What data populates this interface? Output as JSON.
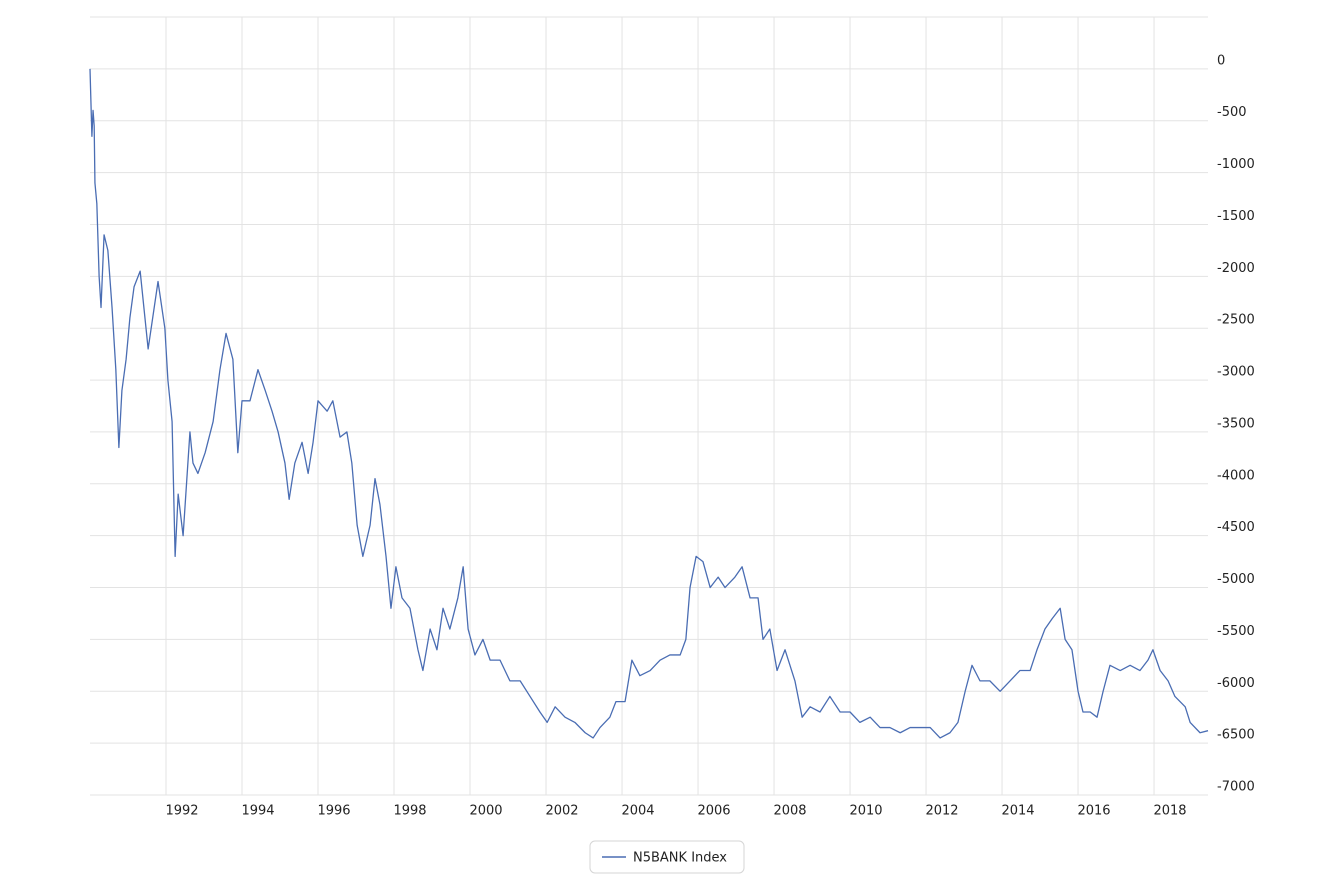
{
  "chart_data": {
    "type": "line",
    "x": [
      1990.0,
      1990.05,
      1990.08,
      1990.11,
      1990.13,
      1990.18,
      1990.24,
      1990.29,
      1990.37,
      1990.47,
      1990.58,
      1990.68,
      1990.76,
      1990.84,
      1990.95,
      1991.05,
      1991.16,
      1991.32,
      1991.53,
      1991.79,
      1991.97,
      1992.05,
      1992.16,
      1992.24,
      1992.32,
      1992.45,
      1992.63,
      1992.71,
      1992.84,
      1993.03,
      1993.24,
      1993.42,
      1993.58,
      1993.76,
      1993.89,
      1994.0,
      1994.21,
      1994.42,
      1994.61,
      1994.79,
      1994.95,
      1995.13,
      1995.24,
      1995.39,
      1995.58,
      1995.74,
      1995.87,
      1996.0,
      1996.24,
      1996.39,
      1996.58,
      1996.76,
      1996.89,
      1997.03,
      1997.18,
      1997.37,
      1997.5,
      1997.63,
      1997.79,
      1997.92,
      1998.05,
      1998.21,
      1998.42,
      1998.63,
      1998.76,
      1998.95,
      1999.13,
      1999.29,
      1999.47,
      1999.68,
      1999.82,
      1999.95,
      2000.13,
      2000.34,
      2000.53,
      2000.79,
      2001.05,
      2001.32,
      2001.58,
      2001.84,
      2002.03,
      2002.24,
      2002.5,
      2002.76,
      2003.03,
      2003.24,
      2003.42,
      2003.68,
      2003.84,
      2004.08,
      2004.26,
      2004.47,
      2004.74,
      2005.0,
      2005.26,
      2005.53,
      2005.68,
      2005.79,
      2005.95,
      2006.13,
      2006.32,
      2006.53,
      2006.71,
      2006.97,
      2007.16,
      2007.37,
      2007.58,
      2007.71,
      2007.89,
      2008.08,
      2008.29,
      2008.55,
      2008.74,
      2008.95,
      2009.21,
      2009.47,
      2009.74,
      2010.0,
      2010.26,
      2010.53,
      2010.79,
      2011.05,
      2011.32,
      2011.58,
      2011.84,
      2012.11,
      2012.37,
      2012.63,
      2012.84,
      2013.03,
      2013.21,
      2013.42,
      2013.68,
      2013.95,
      2014.21,
      2014.47,
      2014.74,
      2014.92,
      2015.13,
      2015.32,
      2015.53,
      2015.66,
      2015.84,
      2016.0,
      2016.13,
      2016.32,
      2016.5,
      2016.66,
      2016.84,
      2017.11,
      2017.37,
      2017.63,
      2017.84,
      2017.97,
      2018.16,
      2018.37,
      2018.55,
      2018.82,
      2018.95,
      2019.21,
      2019.42
    ],
    "series": [
      {
        "name": "N5BANK Index",
        "color": "#4a6db3",
        "values": [
          0,
          -650,
          -400,
          -550,
          -1100,
          -1300,
          -2000,
          -2300,
          -1600,
          -1750,
          -2300,
          -2900,
          -3650,
          -3100,
          -2800,
          -2400,
          -2100,
          -1950,
          -2700,
          -2050,
          -2500,
          -3000,
          -3400,
          -4700,
          -4100,
          -4500,
          -3500,
          -3800,
          -3900,
          -3700,
          -3400,
          -2900,
          -2550,
          -2800,
          -3700,
          -3200,
          -3200,
          -2900,
          -3100,
          -3300,
          -3500,
          -3800,
          -4150,
          -3800,
          -3600,
          -3900,
          -3600,
          -3200,
          -3300,
          -3200,
          -3550,
          -3500,
          -3800,
          -4400,
          -4700,
          -4400,
          -3950,
          -4200,
          -4700,
          -5200,
          -4800,
          -5100,
          -5200,
          -5600,
          -5800,
          -5400,
          -5600,
          -5200,
          -5400,
          -5100,
          -4800,
          -5400,
          -5650,
          -5500,
          -5700,
          -5700,
          -5900,
          -5900,
          -6050,
          -6200,
          -6300,
          -6150,
          -6250,
          -6300,
          -6400,
          -6450,
          -6350,
          -6250,
          -6100,
          -6100,
          -5700,
          -5850,
          -5800,
          -5700,
          -5650,
          -5650,
          -5500,
          -5000,
          -4700,
          -4750,
          -5000,
          -4900,
          -5000,
          -4900,
          -4800,
          -5100,
          -5100,
          -5500,
          -5400,
          -5800,
          -5600,
          -5900,
          -6250,
          -6150,
          -6200,
          -6050,
          -6200,
          -6200,
          -6300,
          -6250,
          -6350,
          -6350,
          -6400,
          -6350,
          -6350,
          -6350,
          -6450,
          -6400,
          -6300,
          -6000,
          -5750,
          -5900,
          -5900,
          -6000,
          -5900,
          -5800,
          -5800,
          -5600,
          -5400,
          -5300,
          -5200,
          -5500,
          -5600,
          -6000,
          -6200,
          -6200,
          -6250,
          -6000,
          -5750,
          -5800,
          -5750,
          -5800,
          -5700,
          -5600,
          -5800,
          -5900,
          -6050,
          -6150,
          -6300,
          -6400,
          -6380
        ]
      }
    ],
    "xlim": [
      1990,
      2019.42
    ],
    "xticks": [
      1992,
      1994,
      1996,
      1998,
      2000,
      2002,
      2004,
      2006,
      2008,
      2010,
      2012,
      2014,
      2016,
      2018
    ],
    "ylim": [
      -7000,
      500
    ],
    "yticks": [
      0,
      -500,
      -1000,
      -1500,
      -2000,
      -2500,
      -3000,
      -3500,
      -4000,
      -4500,
      -5000,
      -5500,
      -6000,
      -6500,
      -7000
    ],
    "grid": true,
    "legend": "bottom"
  }
}
